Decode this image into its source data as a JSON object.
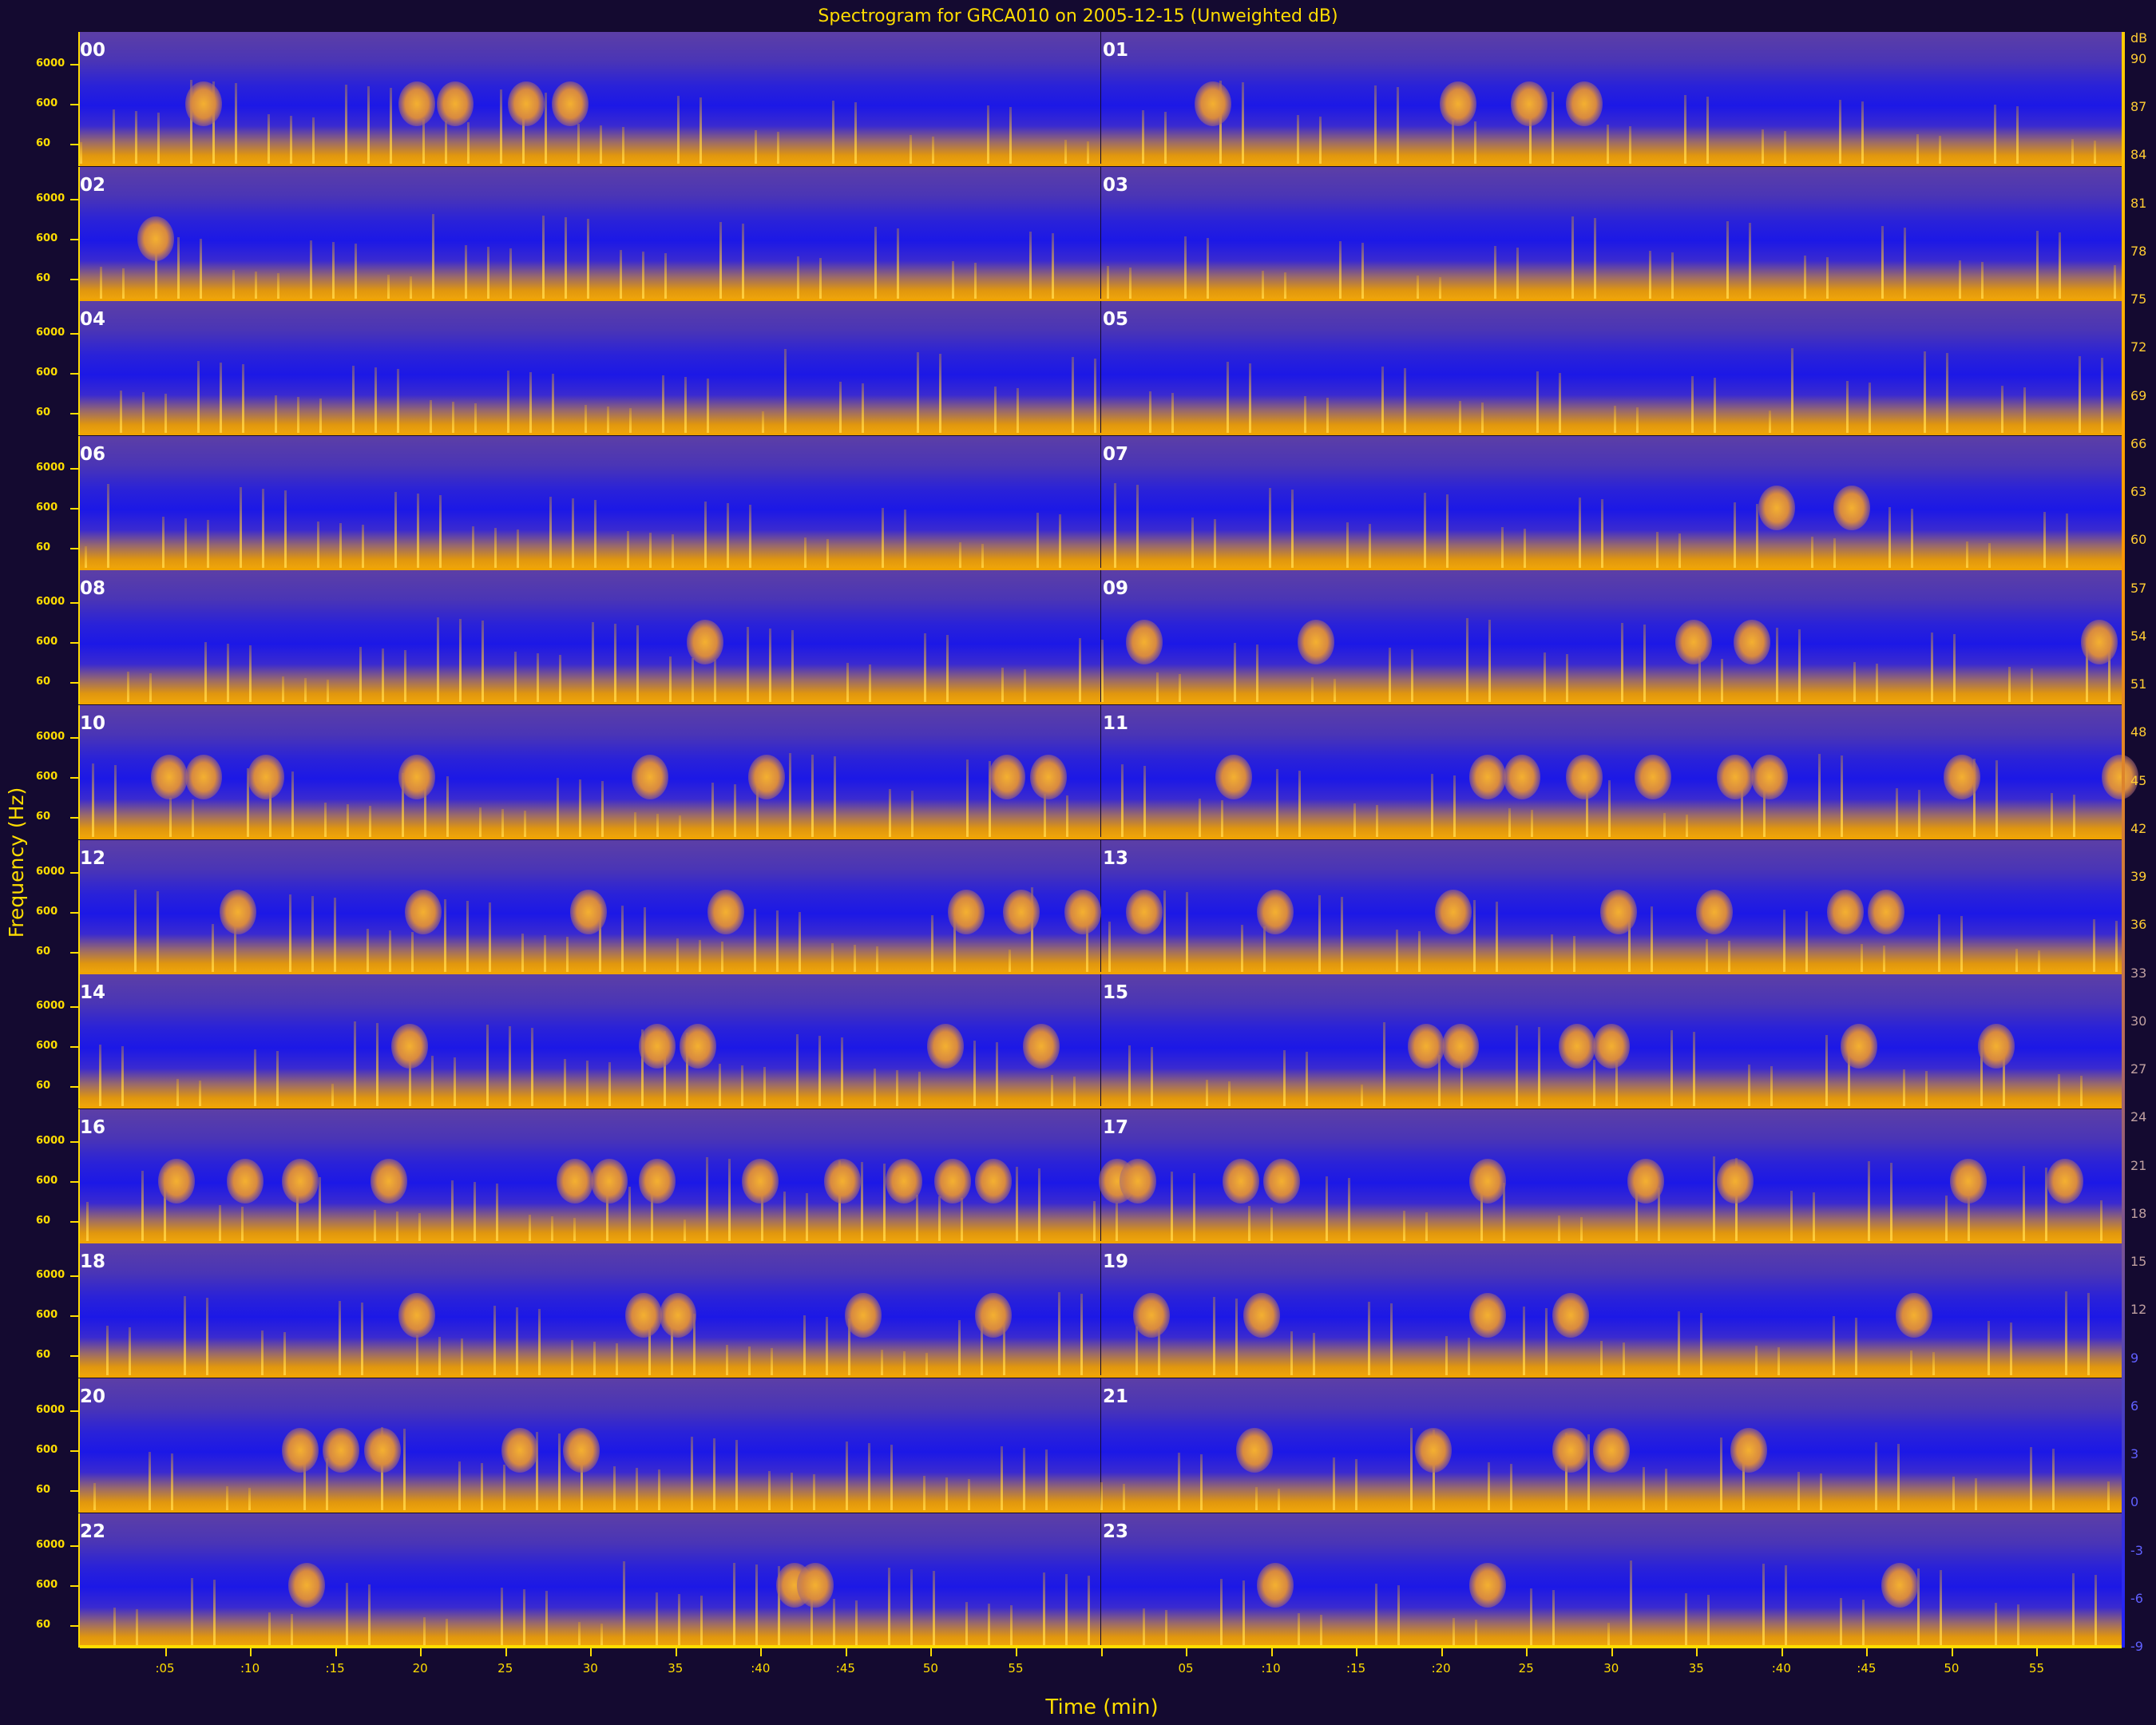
{
  "title": "Spectrogram for GRCA010 on 2005-12-15 (Unweighted dB)",
  "xlabel": "Time (min)",
  "ylabel": "Frequency (Hz)",
  "chart_data": {
    "type": "heatmap",
    "title": "Spectrogram for GRCA010 on 2005-12-15 (Unweighted dB)",
    "xlabel": "Time (min)",
    "ylabel": "Frequency (Hz)",
    "rows": [
      {
        "left": "00",
        "right": "01"
      },
      {
        "left": "02",
        "right": "03"
      },
      {
        "left": "04",
        "right": "05"
      },
      {
        "left": "06",
        "right": "07"
      },
      {
        "left": "08",
        "right": "09"
      },
      {
        "left": "10",
        "right": "11"
      },
      {
        "left": "12",
        "right": "13"
      },
      {
        "left": "14",
        "right": "15"
      },
      {
        "left": "16",
        "right": "17"
      },
      {
        "left": "18",
        "right": "19"
      },
      {
        "left": "20",
        "right": "21"
      },
      {
        "left": "22",
        "right": "23"
      }
    ],
    "y_ticks": [
      "6000",
      "600",
      "60"
    ],
    "x_ticks": [
      ":05",
      ":10",
      ":15",
      "20",
      "25",
      "30",
      "35",
      ":40",
      ":45",
      "50",
      "55",
      "",
      "05",
      ":10",
      ":15",
      ":20",
      "25",
      "30",
      "35",
      ":40",
      ":45",
      "50",
      "55"
    ],
    "colorbar_label": "dB",
    "colorbar_ticks": [
      "90",
      "87",
      "84",
      "81",
      "78",
      "75",
      "72",
      "69",
      "66",
      "63",
      "60",
      "57",
      "54",
      "51",
      "48",
      "45",
      "42",
      "39",
      "36",
      "33",
      "30",
      "27",
      "24",
      "21",
      "18",
      "15",
      "12",
      "9",
      "6",
      "3",
      "0",
      "-3",
      "-6",
      "-9"
    ],
    "colors": {
      "low": "#2020ff",
      "high": "#ffcc00",
      "background": "#140a30",
      "text": "#ffdd00"
    }
  }
}
